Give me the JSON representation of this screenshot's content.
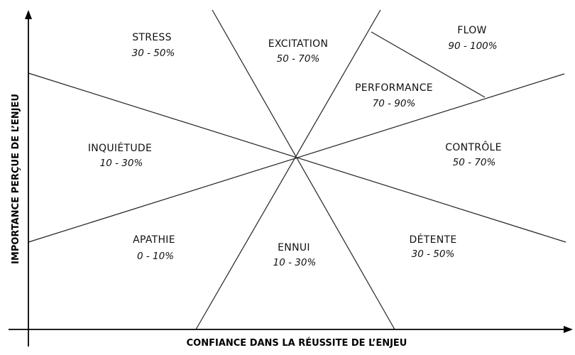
{
  "axes": {
    "x_title": "CONFIANCE DANS LA RÉUSSITE DE L’ENJEU",
    "y_title": "IMPORTANCE PERÇUE DE L’ENJEU"
  },
  "zones": {
    "stress": {
      "name": "STRESS",
      "range": "30 - 50%"
    },
    "excitation": {
      "name": "EXCITATION",
      "range": "50 - 70%"
    },
    "flow": {
      "name": "FLOW",
      "range": "90 - 100%"
    },
    "performance": {
      "name": "PERFORMANCE",
      "range": "70 - 90%"
    },
    "inquietude": {
      "name": "INQUIÉTUDE",
      "range": "10 - 30%"
    },
    "controle": {
      "name": "CONTRÔLE",
      "range": "50 - 70%"
    },
    "apathie": {
      "name": "APATHIE",
      "range": "0 - 10%"
    },
    "ennui": {
      "name": "ENNUI",
      "range": "10 - 30%"
    },
    "detente": {
      "name": "DÉTENTE",
      "range": "30 - 50%"
    }
  }
}
